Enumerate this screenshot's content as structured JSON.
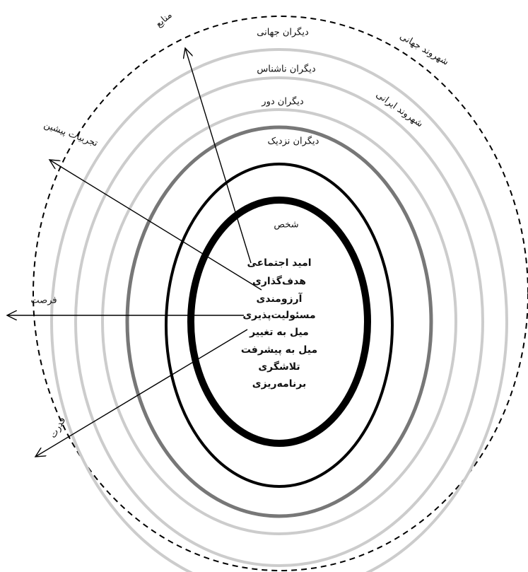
{
  "layers": [
    "دیگران جهانی",
    "دیگران ناشناس",
    "دیگران دور",
    "دیگران نزدیک",
    "شخص"
  ],
  "citizenship": [
    "شهروند جهانی",
    "شهروند ایرانی"
  ],
  "forces": [
    "منابع",
    "تجربیات پیشین",
    "فرصت",
    "قدرت"
  ],
  "traits": [
    "امید اجتماعی",
    "هدف‌گذاری",
    "آرزومندی",
    "مسئولیت‌پذیری",
    "میل به تغییر",
    "میل به پیشرفت",
    "تلاشگری",
    "برنامه‌ریزی"
  ]
}
